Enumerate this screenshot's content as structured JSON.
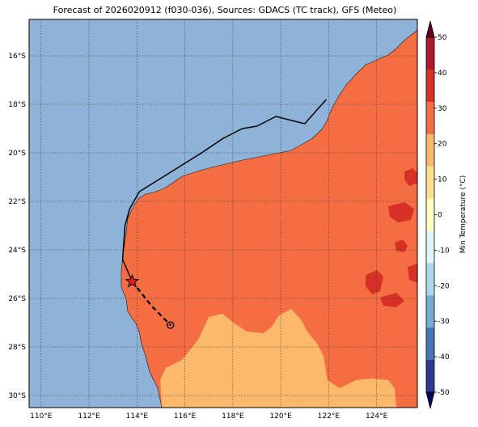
{
  "title": "Forecast of 2026020912 (f030-036), Sources: GDACS (TC track), GFS (Meteo)",
  "colors": {
    "ocean": "#8fb3d8",
    "land_hot": "#f46d43",
    "land_warm": "#fdb96b",
    "land_hotter": "#d73027"
  },
  "map": {
    "lon_range": [
      109.5,
      125.7
    ],
    "lat_range": [
      -30.5,
      -14.5
    ],
    "lon_ticks": [
      "110°E",
      "112°E",
      "114°E",
      "116°E",
      "118°E",
      "120°E",
      "122°E",
      "124°E"
    ],
    "lat_ticks": [
      "16°S",
      "18°S",
      "20°S",
      "22°S",
      "24°S",
      "26°S",
      "28°S",
      "30°S"
    ],
    "grid": true
  },
  "track": {
    "past": [
      [
        121.9,
        -17.8
      ],
      [
        121.0,
        -18.8
      ],
      [
        119.8,
        -18.5
      ],
      [
        119.0,
        -18.9
      ],
      [
        118.4,
        -19.0
      ],
      [
        117.6,
        -19.4
      ],
      [
        116.7,
        -20.0
      ],
      [
        114.1,
        -21.6
      ],
      [
        113.7,
        -22.3
      ],
      [
        113.5,
        -23.0
      ],
      [
        113.4,
        -24.4
      ],
      [
        113.8,
        -25.3
      ]
    ],
    "forecast": [
      [
        113.8,
        -25.3
      ],
      [
        114.6,
        -26.3
      ],
      [
        115.4,
        -27.1
      ]
    ],
    "current_position": [
      113.8,
      -25.3
    ],
    "forecast_position": [
      115.4,
      -27.1
    ]
  },
  "colorbar": {
    "label": "Min Temperature (°C)",
    "ticks": [
      "50",
      "40",
      "30",
      "20",
      "10",
      "0",
      "-10",
      "-20",
      "-30",
      "-40",
      "-50"
    ],
    "colors": [
      "#67001f",
      "#b2182b",
      "#d73027",
      "#f46d43",
      "#fdb96b",
      "#fee090",
      "#ffffbf",
      "#e0f3f8",
      "#abd9e9",
      "#74add1",
      "#4575b4",
      "#313695",
      "#08085a"
    ]
  }
}
